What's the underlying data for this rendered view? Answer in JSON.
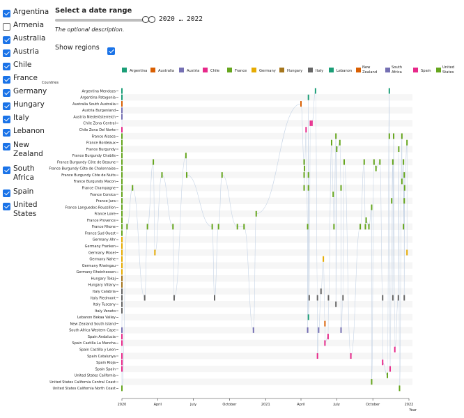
{
  "countries_filter": [
    {
      "label": "Argentina",
      "checked": true
    },
    {
      "label": "Armenia",
      "checked": false
    },
    {
      "label": "Australia",
      "checked": true
    },
    {
      "label": "Austria",
      "checked": true
    },
    {
      "label": "Chile",
      "checked": true
    },
    {
      "label": "France",
      "checked": true
    },
    {
      "label": "Germany",
      "checked": true
    },
    {
      "label": "Hungary",
      "checked": true
    },
    {
      "label": "Italy",
      "checked": true
    },
    {
      "label": "Lebanon",
      "checked": true
    },
    {
      "label": "New Zealand",
      "checked": true
    },
    {
      "label": "South Africa",
      "checked": true
    },
    {
      "label": "Spain",
      "checked": true
    },
    {
      "label": "United States",
      "checked": true
    }
  ],
  "date_range": {
    "title": "Select a date range",
    "value_text": "2020 … 2022",
    "description": "The optional description.",
    "start": 2020,
    "end": 2022
  },
  "show_regions": {
    "label": "Show regions",
    "checked": true
  },
  "chart_data": {
    "type": "scatter",
    "ylabel": "Countries",
    "xlabel": "Year",
    "xlim": [
      "2020-01-01",
      "2022-01-01"
    ],
    "x_ticks": [
      {
        "date": "2020-01-01",
        "label": "2020"
      },
      {
        "date": "2020-04-01",
        "label": "April"
      },
      {
        "date": "2020-07-01",
        "label": "July"
      },
      {
        "date": "2020-10-01",
        "label": "October"
      },
      {
        "date": "2021-01-01",
        "label": "2021"
      },
      {
        "date": "2021-04-01",
        "label": "April"
      },
      {
        "date": "2021-07-01",
        "label": "July"
      },
      {
        "date": "2021-10-01",
        "label": "October"
      },
      {
        "date": "2022-01-01",
        "label": "2022"
      }
    ],
    "legend": [
      {
        "name": "Argentina",
        "color": "#1b9e77"
      },
      {
        "name": "Australia",
        "color": "#d95f02"
      },
      {
        "name": "Austria",
        "color": "#7570b3"
      },
      {
        "name": "Chile",
        "color": "#e7298a"
      },
      {
        "name": "France",
        "color": "#66a61e"
      },
      {
        "name": "Germany",
        "color": "#e6ab02"
      },
      {
        "name": "Hungary",
        "color": "#a6761d"
      },
      {
        "name": "Italy",
        "color": "#666666"
      },
      {
        "name": "Lebanon",
        "color": "#1b9e77"
      },
      {
        "name": "New Zealand",
        "color": "#d95f02"
      },
      {
        "name": "South Africa",
        "color": "#7570b3"
      },
      {
        "name": "Spain",
        "color": "#e7298a"
      },
      {
        "name": "United States",
        "color": "#66a61e"
      }
    ],
    "regions": [
      {
        "name": "Argentina Mendoza",
        "country": "Argentina",
        "dates": [
          "2020-01-01",
          "2021-05-08",
          "2021-11-12"
        ]
      },
      {
        "name": "Argentina Patagonia",
        "country": "Argentina",
        "dates": [
          "2020-01-01",
          "2021-04-20"
        ]
      },
      {
        "name": "Australia South Australia",
        "country": "Australia",
        "dates": [
          "2020-01-01",
          "2021-04-01"
        ]
      },
      {
        "name": "Austria Burgenland",
        "country": "Austria",
        "dates": [
          "2020-01-01"
        ]
      },
      {
        "name": "Austria Niederösterreich",
        "country": "Austria",
        "dates": [
          "2020-01-01"
        ]
      },
      {
        "name": "Chile Zona Central",
        "country": "Chile",
        "dates": [
          "2021-04-25",
          "2021-04-29"
        ]
      },
      {
        "name": "Chile Zona Del Norte",
        "country": "Chile",
        "dates": [
          "2020-01-01",
          "2021-04-14"
        ]
      },
      {
        "name": "France Alsace",
        "country": "France",
        "dates": [
          "2020-01-01",
          "2021-06-29",
          "2021-11-12",
          "2021-11-23",
          "2021-12-14"
        ]
      },
      {
        "name": "France Bordeaux",
        "country": "France",
        "dates": [
          "2020-01-01",
          "2021-06-18",
          "2021-07-09",
          "2021-12-27"
        ]
      },
      {
        "name": "France Burgundy",
        "country": "France",
        "dates": [
          "2020-01-01",
          "2021-07-01",
          "2021-12-06"
        ]
      },
      {
        "name": "France Burgundy Chablis",
        "country": "France",
        "dates": [
          "2020-01-01",
          "2020-06-12"
        ]
      },
      {
        "name": "France Burgundy Côte de Beaune",
        "country": "France",
        "dates": [
          "2020-01-01",
          "2020-03-21",
          "2021-04-09",
          "2021-07-20",
          "2021-09-09",
          "2021-10-04",
          "2021-10-19",
          "2021-11-21",
          "2021-12-18"
        ]
      },
      {
        "name": "France Burgundy Côte de Chalonnaise",
        "country": "France",
        "dates": [
          "2020-01-01",
          "2021-04-10",
          "2021-10-09"
        ]
      },
      {
        "name": "France Burgundy Côte de Nuits",
        "country": "France",
        "dates": [
          "2020-01-01",
          "2020-04-12",
          "2020-06-14",
          "2020-09-12",
          "2021-04-09",
          "2021-04-20",
          "2021-12-20"
        ]
      },
      {
        "name": "France Burgundy Macon",
        "country": "France",
        "dates": [
          "2020-01-01",
          "2021-12-14"
        ]
      },
      {
        "name": "France Champagne",
        "country": "France",
        "dates": [
          "2020-01-01",
          "2020-01-28",
          "2021-04-09",
          "2021-04-20",
          "2021-07-12",
          "2021-12-21"
        ]
      },
      {
        "name": "France Corsica",
        "country": "France",
        "dates": [
          "2020-01-01",
          "2021-06-22"
        ]
      },
      {
        "name": "France Jura",
        "country": "France",
        "dates": [
          "2020-01-01",
          "2021-11-18",
          "2021-12-20"
        ]
      },
      {
        "name": "France Languedoc-Roussillon",
        "country": "France",
        "dates": [
          "2020-01-01",
          "2021-09-28"
        ]
      },
      {
        "name": "France Loire",
        "country": "France",
        "dates": [
          "2020-01-01",
          "2020-12-08"
        ]
      },
      {
        "name": "France Provence",
        "country": "France",
        "dates": [
          "2020-01-01",
          "2021-09-14"
        ]
      },
      {
        "name": "France Rhone",
        "country": "France",
        "dates": [
          "2020-01-01",
          "2020-01-14",
          "2020-03-06",
          "2020-05-10",
          "2020-08-18",
          "2020-09-03",
          "2020-10-21",
          "2020-11-07",
          "2021-04-18",
          "2021-06-24",
          "2021-08-30",
          "2021-09-12",
          "2021-09-21",
          "2021-12-18"
        ]
      },
      {
        "name": "France Sud Ouest",
        "country": "France",
        "dates": [
          "2020-01-01"
        ]
      },
      {
        "name": "Germany Ahr",
        "country": "Germany",
        "dates": [
          "2020-01-01"
        ]
      },
      {
        "name": "Germany Franken",
        "country": "Germany",
        "dates": [
          "2020-01-01"
        ]
      },
      {
        "name": "Germany Mosel",
        "country": "Germany",
        "dates": [
          "2020-01-01",
          "2020-03-25",
          "2021-12-27"
        ]
      },
      {
        "name": "Germany Nahe",
        "country": "Germany",
        "dates": [
          "2020-01-01",
          "2021-05-28"
        ]
      },
      {
        "name": "Germany Rheingau",
        "country": "Germany",
        "dates": [
          "2020-01-01"
        ]
      },
      {
        "name": "Germany Rheinhessen",
        "country": "Germany",
        "dates": [
          "2020-01-01"
        ]
      },
      {
        "name": "Hungary Tokaj",
        "country": "Hungary",
        "dates": [
          "2020-01-01"
        ]
      },
      {
        "name": "Hungary Villany",
        "country": "Hungary",
        "dates": [
          "2020-01-01"
        ]
      },
      {
        "name": "Italy Calabria",
        "country": "Italy",
        "dates": [
          "2020-01-01",
          "2021-05-22"
        ]
      },
      {
        "name": "Italy Piedmont",
        "country": "Italy",
        "dates": [
          "2020-01-01",
          "2020-02-28",
          "2020-05-13",
          "2020-08-24",
          "2021-04-22",
          "2021-05-13",
          "2021-06-10",
          "2021-07-17",
          "2021-10-26",
          "2021-11-21",
          "2021-12-05",
          "2021-12-20"
        ]
      },
      {
        "name": "Italy Tuscany",
        "country": "Italy",
        "dates": [
          "2020-01-01",
          "2021-06-29"
        ]
      },
      {
        "name": "Italy Veneto",
        "country": "Italy",
        "dates": [
          "2020-01-01"
        ]
      },
      {
        "name": "Lebanon Bekaa Valley",
        "country": "Lebanon",
        "dates": [
          "2021-04-20"
        ]
      },
      {
        "name": "New Zealand South Island",
        "country": "New Zealand",
        "dates": [
          "2021-06-01"
        ]
      },
      {
        "name": "South Africa Western Cape",
        "country": "South Africa",
        "dates": [
          "2020-01-01",
          "2020-12-01",
          "2021-04-18",
          "2021-05-16",
          "2021-07-12"
        ]
      },
      {
        "name": "Spain Andalucia",
        "country": "Spain",
        "dates": [
          "2020-01-01",
          "2021-06-09"
        ]
      },
      {
        "name": "Spain Castilla La Mancha",
        "country": "Spain",
        "dates": [
          "2020-01-01",
          "2021-06-01"
        ]
      },
      {
        "name": "Spain Castilla y Leon",
        "country": "Spain",
        "dates": [
          "2021-11-26"
        ]
      },
      {
        "name": "Spain Catalunya",
        "country": "Spain",
        "dates": [
          "2020-01-01",
          "2021-05-13",
          "2021-08-06"
        ]
      },
      {
        "name": "Spain Rioja",
        "country": "Spain",
        "dates": [
          "2020-01-01",
          "2021-10-26"
        ]
      },
      {
        "name": "Spain Spain",
        "country": "Spain",
        "dates": [
          "2020-01-01",
          "2021-11-14"
        ]
      },
      {
        "name": "United States California",
        "country": "United States",
        "dates": [
          "2021-11-07"
        ]
      },
      {
        "name": "United States California Central Coast",
        "country": "United States",
        "dates": [
          "2021-09-28"
        ]
      },
      {
        "name": "United States California North Coast",
        "country": "United States",
        "dates": [
          "2020-01-01",
          "2021-12-08"
        ]
      }
    ]
  }
}
